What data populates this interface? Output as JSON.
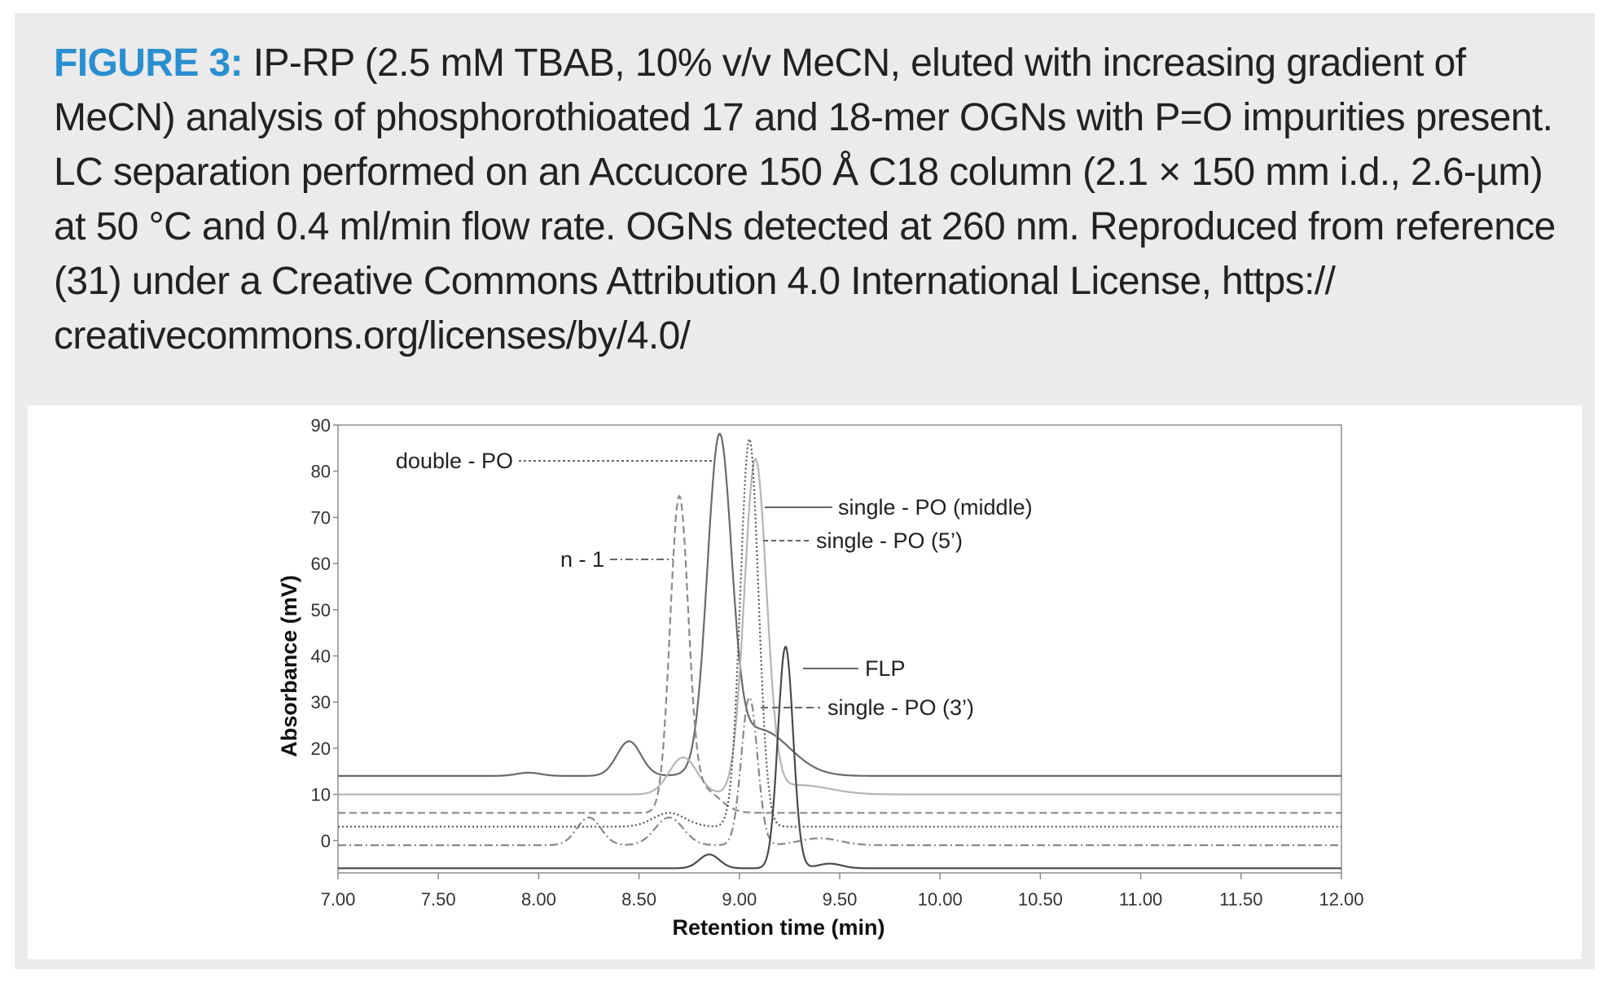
{
  "caption": {
    "label": "FIGURE 3:",
    "text": "IP-RP (2.5 mM TBAB, 10% v/v MeCN, eluted with increasing gradient of MeCN) analysis of phosphorothioated 17 and 18-mer OGNs with P=O impurities present. LC separation performed on an Accucore 150 Å C18 column (2.1 × 150 mm i.d., 2.6-µm) at 50 °C and 0.4 ml/min flow rate. OGNs detected at 260 nm. Reproduced from reference (31) under a Creative Commons Attribution 4.0 International License, https:// creativecommons.org/licenses/by/4.0/"
  },
  "colors": {
    "caption_label": "#2a8fd0",
    "panel_bg": "#ebebeb"
  },
  "chart_data": {
    "type": "line",
    "xlabel": "Retention time (min)",
    "ylabel": "Absorbance (mV)",
    "xlim": [
      7.0,
      12.0
    ],
    "ylim": [
      -7,
      90
    ],
    "x_ticks": [
      "7.00",
      "7.50",
      "8.00",
      "8.50",
      "9.00",
      "9.50",
      "10.00",
      "10.50",
      "11.00",
      "11.50",
      "12.00"
    ],
    "y_ticks": [
      "90",
      "80",
      "70",
      "60",
      "50",
      "40",
      "30",
      "20",
      "10",
      "0"
    ],
    "grid": false,
    "legend": "none",
    "series": [
      {
        "name": "double - PO",
        "style": "solid",
        "color": "#6a6a6a",
        "baseline": 14,
        "peaks": [
          [
            7.95,
            0.7,
            0.06
          ],
          [
            8.45,
            7.5,
            0.06
          ],
          [
            8.9,
            70,
            0.06
          ],
          [
            9.1,
            10,
            0.15
          ]
        ]
      },
      {
        "name": "single - PO (middle)",
        "style": "solid",
        "color": "#b5b5b5",
        "baseline": 10,
        "peaks": [
          [
            8.72,
            8,
            0.07
          ],
          [
            9.08,
            72,
            0.055
          ],
          [
            9.3,
            2,
            0.15
          ]
        ]
      },
      {
        "name": "n - 1",
        "style": "dashed",
        "color": "#8a8a8a",
        "baseline": 6,
        "peaks": [
          [
            8.7,
            67,
            0.045
          ],
          [
            8.82,
            5,
            0.08
          ]
        ]
      },
      {
        "name": "single - PO (5’)",
        "style": "dotted",
        "color": "#555555",
        "baseline": 3,
        "peaks": [
          [
            8.65,
            3,
            0.08
          ],
          [
            9.05,
            84,
            0.045
          ]
        ]
      },
      {
        "name": "single - PO (3’)",
        "style": "dashdot",
        "color": "#888888",
        "baseline": -1,
        "peaks": [
          [
            8.25,
            6,
            0.06
          ],
          [
            8.65,
            6,
            0.07
          ],
          [
            9.05,
            32,
            0.04
          ],
          [
            9.4,
            1.5,
            0.1
          ]
        ]
      },
      {
        "name": "FLP",
        "style": "solid",
        "color": "#4a4a4a",
        "baseline": -6,
        "peaks": [
          [
            8.85,
            3,
            0.05
          ],
          [
            9.23,
            48,
            0.038
          ],
          [
            9.45,
            1,
            0.06
          ]
        ]
      }
    ],
    "annotations": [
      {
        "text": "double - PO",
        "points_to": [
          8.87,
          80
        ]
      },
      {
        "text": "n - 1",
        "points_to": [
          8.67,
          60
        ]
      },
      {
        "text": "single - PO (middle)",
        "points_to": [
          9.1,
          73
        ]
      },
      {
        "text": "single - PO (5’)",
        "points_to": [
          9.06,
          65
        ]
      },
      {
        "text": "FLP",
        "points_to": [
          9.27,
          36
        ]
      },
      {
        "text": "single - PO (3’)",
        "points_to": [
          9.05,
          26
        ]
      }
    ]
  }
}
